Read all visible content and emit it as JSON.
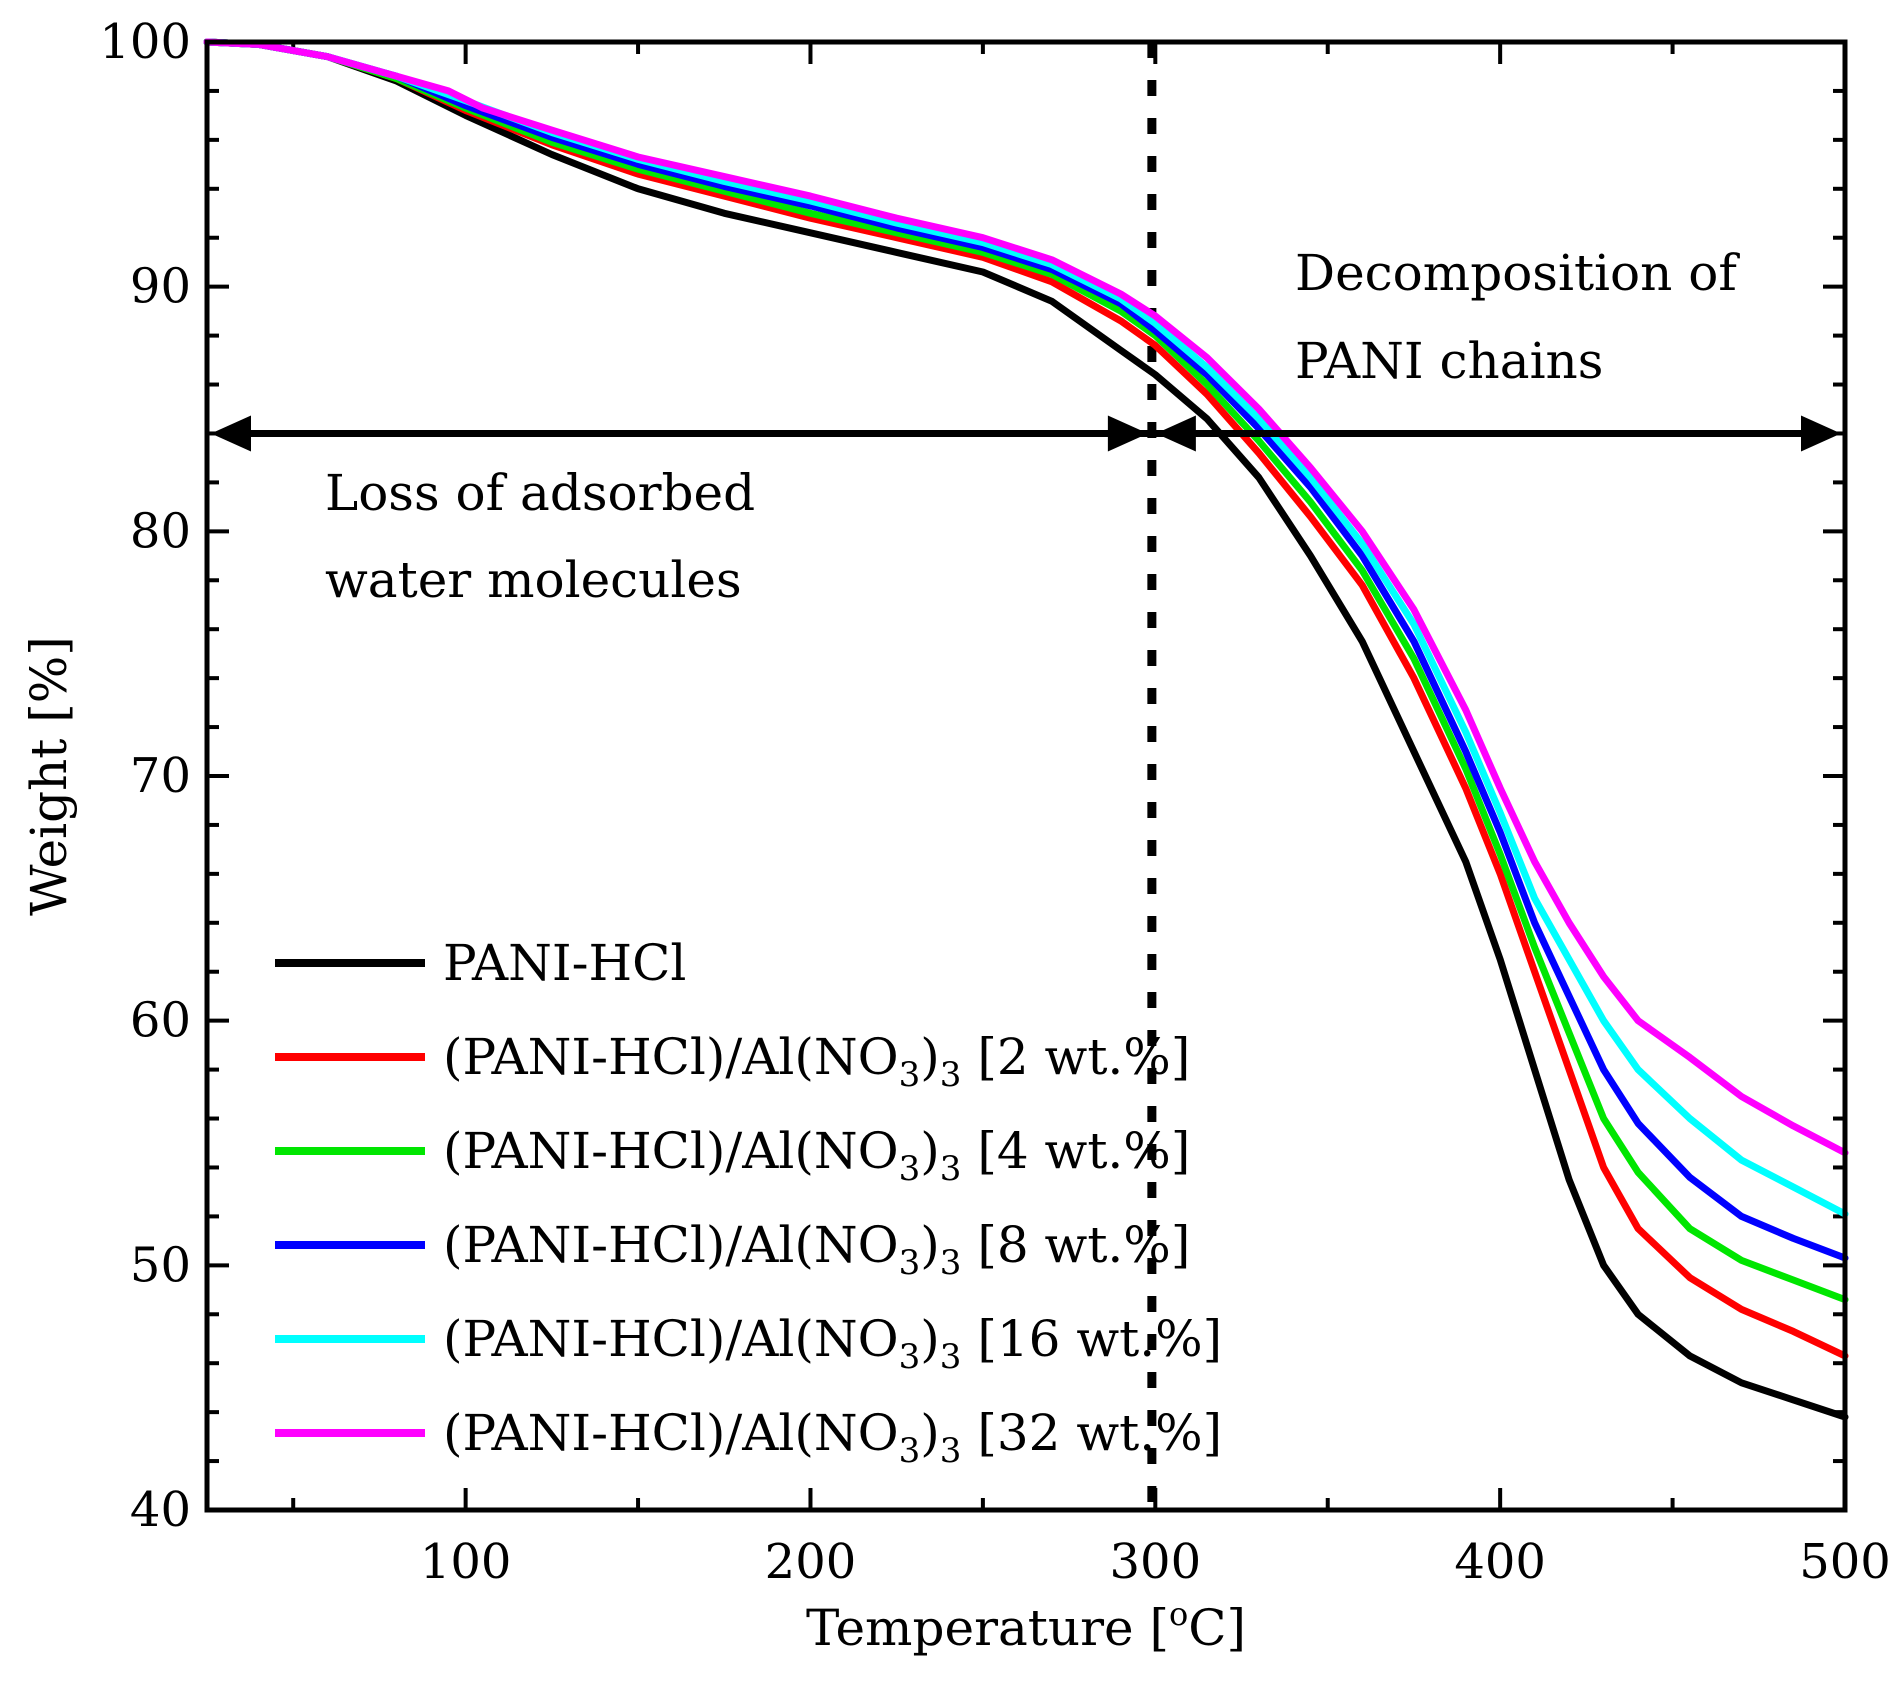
{
  "chart_data": {
    "type": "line",
    "xlabel": "Temperature [°C]",
    "xlabel_main": "Temperature [",
    "xlabel_sup": "o",
    "xlabel_end": "C]",
    "ylabel": "Weight [%]",
    "xlim": [
      25,
      500
    ],
    "ylim": [
      40,
      100
    ],
    "x_ticks": [
      100,
      200,
      300,
      400,
      500
    ],
    "y_ticks": [
      40,
      50,
      60,
      70,
      80,
      90,
      100
    ],
    "x_tick_labels": [
      "100",
      "200",
      "300",
      "400",
      "500"
    ],
    "y_tick_labels": [
      "40",
      "50",
      "60",
      "70",
      "80",
      "90",
      "100"
    ],
    "divider_x": 299,
    "arrow_y": 84,
    "annotations": {
      "left_line1": "Loss of adsorbed",
      "left_line2": "water molecules",
      "right_line1": "Decomposition of",
      "right_line2": "PANI chains"
    },
    "legend": {
      "position": "bottom-left",
      "prefix": "(PANI-HCl)/Al(NO",
      "sub": "3",
      "mid": ")",
      "sub2": "3"
    },
    "series": [
      {
        "name": "PANI-HCl",
        "legend_suffix": "",
        "color": "#000000",
        "x": [
          25,
          40,
          60,
          80,
          100,
          125,
          150,
          175,
          200,
          225,
          250,
          270,
          290,
          300,
          315,
          330,
          345,
          360,
          375,
          390,
          400,
          410,
          420,
          430,
          440,
          455,
          470,
          485,
          500
        ],
        "y": [
          100,
          99.9,
          99.4,
          98.4,
          97.0,
          95.4,
          94.0,
          93.0,
          92.2,
          91.4,
          90.6,
          89.4,
          87.4,
          86.4,
          84.6,
          82.2,
          79.0,
          75.5,
          71.0,
          66.5,
          62.5,
          58.0,
          53.5,
          50.0,
          48.0,
          46.3,
          45.2,
          44.5,
          43.8
        ]
      },
      {
        "name": "(PANI-HCl)/Al(NO3)3 [2 wt.%]",
        "legend_suffix": " [2 wt.%]",
        "color": "#ff0000",
        "x": [
          25,
          40,
          60,
          80,
          100,
          125,
          150,
          175,
          200,
          225,
          250,
          270,
          290,
          300,
          315,
          330,
          345,
          360,
          375,
          390,
          400,
          410,
          420,
          430,
          440,
          455,
          470,
          485,
          500
        ],
        "y": [
          100,
          99.9,
          99.4,
          98.5,
          97.2,
          95.8,
          94.6,
          93.7,
          92.8,
          92.0,
          91.2,
          90.2,
          88.6,
          87.6,
          85.6,
          83.2,
          80.6,
          77.8,
          74.0,
          69.5,
          66.0,
          62.0,
          58.0,
          54.0,
          51.5,
          49.5,
          48.2,
          47.3,
          46.3
        ]
      },
      {
        "name": "(PANI-HCl)/Al(NO3)3 [4 wt.%]",
        "legend_suffix": " [4 wt.%]",
        "color": "#00e600",
        "x": [
          25,
          40,
          60,
          80,
          100,
          125,
          150,
          175,
          200,
          225,
          250,
          270,
          290,
          300,
          315,
          330,
          345,
          360,
          375,
          390,
          400,
          410,
          420,
          430,
          440,
          455,
          470,
          485,
          500
        ],
        "y": [
          100,
          99.9,
          99.4,
          98.5,
          97.3,
          95.9,
          94.8,
          93.9,
          93.0,
          92.2,
          91.4,
          90.5,
          89.0,
          88.0,
          86.0,
          83.7,
          81.2,
          78.4,
          74.8,
          70.3,
          66.8,
          63.0,
          59.5,
          56.0,
          53.8,
          51.5,
          50.2,
          49.4,
          48.6
        ]
      },
      {
        "name": "(PANI-HCl)/Al(NO3)3 [8 wt.%]",
        "legend_suffix": " [8 wt.%]",
        "color": "#0000ff",
        "x": [
          25,
          40,
          60,
          80,
          100,
          125,
          150,
          175,
          200,
          225,
          250,
          270,
          290,
          300,
          315,
          330,
          345,
          360,
          375,
          390,
          400,
          410,
          420,
          430,
          440,
          455,
          470,
          485,
          500
        ],
        "y": [
          100,
          99.9,
          99.4,
          98.6,
          97.4,
          96.1,
          95.0,
          94.1,
          93.3,
          92.4,
          91.6,
          90.7,
          89.3,
          88.2,
          86.4,
          84.2,
          81.8,
          79.0,
          75.5,
          71.0,
          67.7,
          64.0,
          61.0,
          58.0,
          55.8,
          53.6,
          52.0,
          51.1,
          50.3
        ]
      },
      {
        "name": "(PANI-HCl)/Al(NO3)3 [16 wt.%]",
        "legend_suffix": " [16 wt.%]",
        "color": "#00ffff",
        "x": [
          25,
          40,
          60,
          80,
          100,
          125,
          150,
          175,
          200,
          225,
          250,
          270,
          290,
          300,
          315,
          330,
          345,
          360,
          375,
          390,
          400,
          410,
          420,
          430,
          440,
          455,
          470,
          485,
          500
        ],
        "y": [
          100,
          99.9,
          99.4,
          98.6,
          97.6,
          96.3,
          95.2,
          94.3,
          93.5,
          92.6,
          91.8,
          90.9,
          89.5,
          88.5,
          86.7,
          84.6,
          82.2,
          79.5,
          76.2,
          71.8,
          68.5,
          65.0,
          62.5,
          60.0,
          58.0,
          56.0,
          54.3,
          53.2,
          52.1
        ]
      },
      {
        "name": "(PANI-HCl)/Al(NO3)3 [32 wt.%]",
        "legend_suffix": " [32 wt.%]",
        "color": "#ff00ff",
        "x": [
          25,
          40,
          60,
          80,
          95,
          105,
          125,
          150,
          175,
          200,
          225,
          250,
          270,
          290,
          300,
          315,
          330,
          345,
          360,
          375,
          390,
          400,
          410,
          420,
          430,
          440,
          455,
          470,
          485,
          500
        ],
        "y": [
          100,
          99.9,
          99.4,
          98.6,
          98.0,
          97.3,
          96.4,
          95.3,
          94.5,
          93.7,
          92.8,
          92.0,
          91.1,
          89.7,
          88.8,
          87.1,
          85.0,
          82.6,
          80.0,
          76.8,
          72.7,
          69.5,
          66.5,
          64.0,
          61.8,
          60.0,
          58.5,
          56.9,
          55.7,
          54.6
        ]
      }
    ]
  }
}
